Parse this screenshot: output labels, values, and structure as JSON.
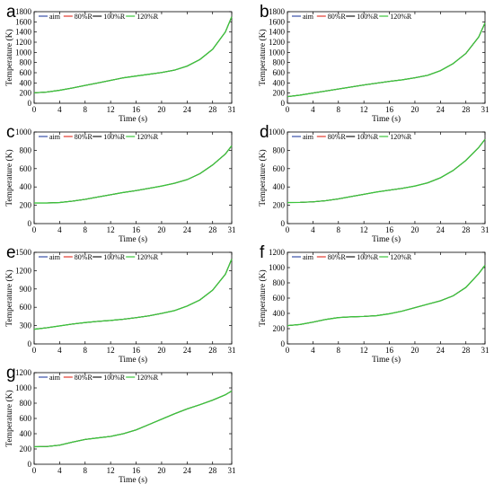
{
  "chart_data": [
    {
      "panel": "a",
      "type": "line",
      "xlabel": "Time (s)",
      "ylabel": "Temperature (K)",
      "xlim": [
        0,
        31
      ],
      "ylim": [
        0,
        1800
      ],
      "xticks": [
        0,
        4,
        8,
        12,
        16,
        20,
        24,
        28,
        31
      ],
      "yticks": [
        0,
        200,
        400,
        600,
        800,
        1000,
        1200,
        1400,
        1600,
        1800
      ],
      "x": [
        0,
        2,
        4,
        6,
        8,
        10,
        12,
        14,
        16,
        18,
        20,
        22,
        24,
        26,
        28,
        30,
        31
      ],
      "series": [
        {
          "name": "aim",
          "color": "#3a4fa8",
          "values": [
            205,
            220,
            255,
            300,
            350,
            400,
            450,
            500,
            535,
            570,
            605,
            650,
            730,
            860,
            1060,
            1400,
            1700
          ]
        },
        {
          "name": "80%R",
          "color": "#e23b2e",
          "values": [
            205,
            220,
            255,
            300,
            350,
            400,
            450,
            500,
            535,
            570,
            605,
            650,
            730,
            860,
            1060,
            1400,
            1700
          ]
        },
        {
          "name": "100%R",
          "color": "#1a1a1a",
          "values": [
            205,
            220,
            255,
            300,
            350,
            400,
            450,
            500,
            535,
            570,
            605,
            650,
            730,
            860,
            1060,
            1400,
            1700
          ]
        },
        {
          "name": "120%R",
          "color": "#3cc43c",
          "values": [
            205,
            220,
            255,
            300,
            350,
            400,
            450,
            500,
            535,
            570,
            605,
            650,
            730,
            860,
            1060,
            1400,
            1700
          ]
        }
      ]
    },
    {
      "panel": "b",
      "type": "line",
      "xlabel": "Time (s)",
      "ylabel": "Temperature (K)",
      "xlim": [
        0,
        31
      ],
      "ylim": [
        0,
        1800
      ],
      "xticks": [
        0,
        4,
        8,
        12,
        16,
        20,
        24,
        28,
        31
      ],
      "yticks": [
        0,
        200,
        400,
        600,
        800,
        1000,
        1200,
        1400,
        1600,
        1800
      ],
      "x": [
        0,
        2,
        4,
        6,
        8,
        10,
        12,
        14,
        16,
        18,
        20,
        22,
        24,
        26,
        28,
        30,
        31
      ],
      "series": [
        {
          "name": "aim",
          "color": "#3a4fa8",
          "values": [
            130,
            160,
            200,
            240,
            280,
            320,
            360,
            395,
            430,
            460,
            500,
            550,
            640,
            780,
            980,
            1300,
            1580
          ]
        },
        {
          "name": "80%R",
          "color": "#e23b2e",
          "values": [
            130,
            160,
            200,
            240,
            280,
            320,
            360,
            395,
            430,
            460,
            500,
            550,
            640,
            780,
            980,
            1300,
            1580
          ]
        },
        {
          "name": "100%R",
          "color": "#1a1a1a",
          "values": [
            130,
            160,
            200,
            240,
            280,
            320,
            360,
            395,
            430,
            460,
            500,
            550,
            640,
            780,
            980,
            1300,
            1580
          ]
        },
        {
          "name": "120%R",
          "color": "#3cc43c",
          "values": [
            130,
            160,
            200,
            240,
            280,
            320,
            360,
            395,
            430,
            460,
            500,
            550,
            640,
            780,
            980,
            1300,
            1580
          ]
        }
      ]
    },
    {
      "panel": "c",
      "type": "line",
      "xlabel": "Time (s)",
      "ylabel": "Temperature (K)",
      "xlim": [
        0,
        31
      ],
      "ylim": [
        0,
        1000
      ],
      "xticks": [
        0,
        4,
        8,
        12,
        16,
        20,
        24,
        28,
        31
      ],
      "yticks": [
        0,
        200,
        400,
        600,
        800,
        1000
      ],
      "x": [
        0,
        2,
        4,
        6,
        8,
        10,
        12,
        14,
        16,
        18,
        20,
        22,
        24,
        26,
        28,
        30,
        31
      ],
      "series": [
        {
          "name": "aim",
          "color": "#3a4fa8",
          "values": [
            225,
            225,
            230,
            245,
            265,
            290,
            315,
            340,
            360,
            385,
            410,
            440,
            480,
            545,
            640,
            760,
            850
          ]
        },
        {
          "name": "80%R",
          "color": "#e23b2e",
          "values": [
            225,
            225,
            230,
            245,
            265,
            290,
            315,
            340,
            360,
            385,
            410,
            440,
            480,
            545,
            640,
            760,
            850
          ]
        },
        {
          "name": "100%R",
          "color": "#1a1a1a",
          "values": [
            225,
            225,
            230,
            245,
            265,
            290,
            315,
            340,
            360,
            385,
            410,
            440,
            480,
            545,
            640,
            760,
            850
          ]
        },
        {
          "name": "120%R",
          "color": "#3cc43c",
          "values": [
            225,
            225,
            230,
            245,
            265,
            290,
            315,
            340,
            360,
            385,
            410,
            440,
            480,
            545,
            640,
            760,
            850
          ]
        }
      ]
    },
    {
      "panel": "d",
      "type": "line",
      "xlabel": "Time (s)",
      "ylabel": "Temperature (K)",
      "xlim": [
        0,
        31
      ],
      "ylim": [
        0,
        1000
      ],
      "xticks": [
        0,
        4,
        8,
        12,
        16,
        20,
        24,
        28,
        31
      ],
      "yticks": [
        0,
        200,
        400,
        600,
        800,
        1000
      ],
      "x": [
        0,
        2,
        4,
        6,
        8,
        10,
        12,
        14,
        16,
        18,
        20,
        22,
        24,
        26,
        28,
        30,
        31
      ],
      "series": [
        {
          "name": "aim",
          "color": "#3a4fa8",
          "values": [
            230,
            232,
            238,
            250,
            270,
            295,
            320,
            345,
            365,
            385,
            410,
            445,
            500,
            580,
            690,
            830,
            920
          ]
        },
        {
          "name": "80%R",
          "color": "#e23b2e",
          "values": [
            230,
            232,
            238,
            250,
            270,
            295,
            320,
            345,
            365,
            385,
            410,
            445,
            500,
            580,
            690,
            830,
            920
          ]
        },
        {
          "name": "100%R",
          "color": "#1a1a1a",
          "values": [
            230,
            232,
            238,
            250,
            270,
            295,
            320,
            345,
            365,
            385,
            410,
            445,
            500,
            580,
            690,
            830,
            920
          ]
        },
        {
          "name": "120%R",
          "color": "#3cc43c",
          "values": [
            230,
            232,
            238,
            250,
            270,
            295,
            320,
            345,
            365,
            385,
            410,
            445,
            500,
            580,
            690,
            830,
            920
          ]
        }
      ]
    },
    {
      "panel": "e",
      "type": "line",
      "xlabel": "Time (s)",
      "ylabel": "Temperature (K)",
      "xlim": [
        0,
        31
      ],
      "ylim": [
        0,
        1500
      ],
      "xticks": [
        0,
        4,
        8,
        12,
        16,
        20,
        24,
        28,
        31
      ],
      "yticks": [
        0,
        300,
        600,
        900,
        1200,
        1500
      ],
      "x": [
        0,
        2,
        4,
        6,
        8,
        10,
        12,
        14,
        16,
        18,
        20,
        22,
        24,
        26,
        28,
        30,
        31
      ],
      "series": [
        {
          "name": "aim",
          "color": "#3a4fa8",
          "values": [
            240,
            265,
            295,
            325,
            350,
            370,
            385,
            405,
            430,
            460,
            500,
            545,
            620,
            720,
            880,
            1140,
            1390
          ]
        },
        {
          "name": "80%R",
          "color": "#e23b2e",
          "values": [
            240,
            265,
            295,
            325,
            350,
            370,
            385,
            405,
            430,
            460,
            500,
            545,
            620,
            720,
            880,
            1140,
            1390
          ]
        },
        {
          "name": "100%R",
          "color": "#1a1a1a",
          "values": [
            240,
            265,
            295,
            325,
            350,
            370,
            385,
            405,
            430,
            460,
            500,
            545,
            620,
            720,
            880,
            1140,
            1390
          ]
        },
        {
          "name": "120%R",
          "color": "#3cc43c",
          "values": [
            240,
            265,
            295,
            325,
            350,
            370,
            385,
            405,
            430,
            460,
            500,
            545,
            620,
            720,
            880,
            1140,
            1390
          ]
        }
      ]
    },
    {
      "panel": "f",
      "type": "line",
      "xlabel": "Time (s)",
      "ylabel": "Temperature (K)",
      "xlim": [
        0,
        31
      ],
      "ylim": [
        0,
        1200
      ],
      "xticks": [
        0,
        4,
        8,
        12,
        16,
        20,
        24,
        28,
        31
      ],
      "yticks": [
        0,
        200,
        400,
        600,
        800,
        1000,
        1200
      ],
      "x": [
        0,
        2,
        4,
        6,
        8,
        10,
        12,
        14,
        16,
        18,
        20,
        22,
        24,
        26,
        28,
        30,
        31
      ],
      "series": [
        {
          "name": "aim",
          "color": "#3a4fa8",
          "values": [
            240,
            255,
            285,
            320,
            345,
            355,
            360,
            370,
            395,
            430,
            475,
            520,
            565,
            630,
            740,
            920,
            1030
          ]
        },
        {
          "name": "80%R",
          "color": "#e23b2e",
          "values": [
            240,
            255,
            285,
            320,
            345,
            355,
            360,
            370,
            395,
            430,
            475,
            520,
            565,
            630,
            740,
            920,
            1030
          ]
        },
        {
          "name": "100%R",
          "color": "#1a1a1a",
          "values": [
            240,
            255,
            285,
            320,
            345,
            355,
            360,
            370,
            395,
            430,
            475,
            520,
            565,
            630,
            740,
            920,
            1030
          ]
        },
        {
          "name": "120%R",
          "color": "#3cc43c",
          "values": [
            240,
            255,
            285,
            320,
            345,
            355,
            360,
            370,
            395,
            430,
            475,
            520,
            565,
            630,
            740,
            920,
            1030
          ]
        }
      ]
    },
    {
      "panel": "g",
      "type": "line",
      "xlabel": "Time (s)",
      "ylabel": "Temperature (K)",
      "xlim": [
        0,
        31
      ],
      "ylim": [
        0,
        1200
      ],
      "xticks": [
        0,
        4,
        8,
        12,
        16,
        20,
        24,
        28,
        31
      ],
      "yticks": [
        0,
        200,
        400,
        600,
        800,
        1000,
        1200
      ],
      "x": [
        0,
        2,
        4,
        6,
        8,
        10,
        12,
        14,
        16,
        18,
        20,
        22,
        24,
        26,
        28,
        30,
        31
      ],
      "series": [
        {
          "name": "aim",
          "color": "#3a4fa8",
          "values": [
            230,
            232,
            250,
            290,
            325,
            345,
            365,
            400,
            450,
            520,
            590,
            660,
            725,
            780,
            840,
            910,
            960
          ]
        },
        {
          "name": "80%R",
          "color": "#e23b2e",
          "values": [
            230,
            232,
            250,
            290,
            325,
            345,
            365,
            400,
            450,
            520,
            590,
            660,
            725,
            780,
            840,
            910,
            960
          ]
        },
        {
          "name": "100%R",
          "color": "#1a1a1a",
          "values": [
            230,
            232,
            250,
            290,
            325,
            345,
            365,
            400,
            450,
            520,
            590,
            660,
            725,
            780,
            840,
            910,
            960
          ]
        },
        {
          "name": "120%R",
          "color": "#3cc43c",
          "values": [
            230,
            232,
            250,
            290,
            325,
            345,
            365,
            400,
            450,
            520,
            590,
            660,
            725,
            780,
            840,
            910,
            960
          ]
        }
      ]
    }
  ]
}
